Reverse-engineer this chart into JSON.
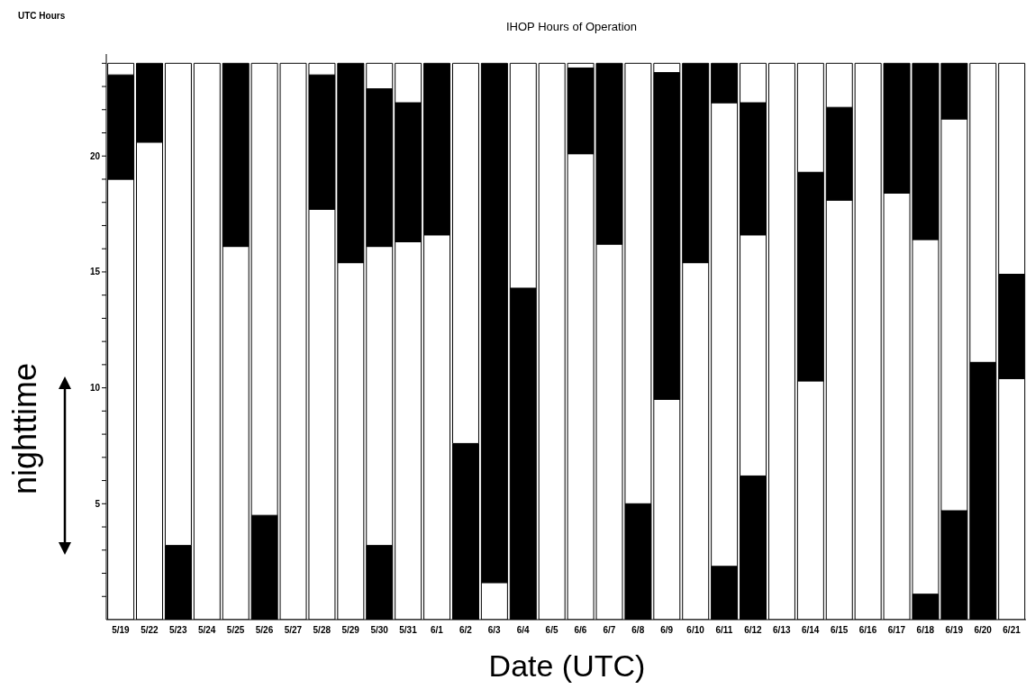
{
  "chart_data": {
    "type": "bar",
    "title": "IHOP Hours of Operation",
    "ylabel": "UTC Hours",
    "xlabel": "Date (UTC)",
    "annotations": [
      "nighttime"
    ],
    "stacked": true,
    "grid": false,
    "legend": false,
    "categories": [
      "5/19",
      "5/22",
      "5/23",
      "5/24",
      "5/25",
      "5/26",
      "5/27",
      "5/28",
      "5/29",
      "5/30",
      "5/31",
      "6/1",
      "6/2",
      "6/3",
      "6/4",
      "6/5",
      "6/6",
      "6/7",
      "6/8",
      "6/9",
      "6/10",
      "6/11",
      "6/12",
      "6/13",
      "6/14",
      "6/15",
      "6/16",
      "6/17",
      "6/18",
      "6/19",
      "6/20",
      "6/21"
    ],
    "series": [
      {
        "color": "#000000",
        "values": [
          0,
          0,
          3.2,
          0,
          0,
          4.5,
          0,
          0,
          0,
          3.2,
          0,
          0,
          7.6,
          0,
          14.3,
          0,
          0,
          0,
          5,
          0,
          0,
          2.3,
          6.2,
          0,
          0,
          0,
          0,
          0,
          1.1,
          4.7,
          11.1,
          0
        ]
      },
      {
        "color": "#ffffff",
        "values": [
          19,
          20.6,
          20.8,
          24,
          16.1,
          19.5,
          24,
          17.7,
          15.4,
          12.9,
          16.3,
          16.6,
          16.4,
          1.6,
          9.7,
          24,
          20.1,
          16.2,
          19,
          9.5,
          15.4,
          20,
          10.4,
          24,
          10.3,
          18.1,
          24,
          18.4,
          15.3,
          16.9,
          12.9,
          10.4
        ]
      },
      {
        "color": "#000000",
        "values": [
          4.5,
          3.4,
          0,
          0,
          7.9,
          0,
          0,
          5.8,
          8.6,
          6.8,
          6,
          7.4,
          0,
          22.4,
          0,
          0,
          3.7,
          7.8,
          0,
          14.1,
          8.6,
          1.7,
          5.7,
          0,
          9,
          4,
          0,
          5.6,
          7.6,
          2.4,
          0,
          4.5
        ]
      },
      {
        "color": "#ffffff",
        "values": [
          0.5,
          0,
          0,
          0,
          0,
          0,
          0,
          0.5,
          0,
          1.1,
          1.7,
          0,
          0,
          0,
          0,
          0,
          0.2,
          0,
          0,
          0.4,
          0,
          0,
          1.7,
          0,
          4.7,
          1.9,
          0,
          0,
          0,
          0,
          0,
          9.1
        ]
      }
    ],
    "ylim": [
      0,
      24.4
    ],
    "yticks": [
      {
        "value": 1,
        "label": null
      },
      {
        "value": 2,
        "label": null
      },
      {
        "value": 3,
        "label": null
      },
      {
        "value": 4,
        "label": null
      },
      5,
      {
        "value": 6,
        "label": null
      },
      {
        "value": 7,
        "label": null
      },
      {
        "value": 8,
        "label": null
      },
      {
        "value": 9,
        "label": null
      },
      10,
      {
        "value": 11,
        "label": null
      },
      {
        "value": 12,
        "label": null
      },
      {
        "value": 13,
        "label": null
      },
      {
        "value": 14,
        "label": null
      },
      15,
      {
        "value": 16,
        "label": null
      },
      {
        "value": 17,
        "label": null
      },
      {
        "value": 18,
        "label": null
      },
      {
        "value": 19,
        "label": null
      },
      20,
      {
        "value": 21,
        "label": null
      },
      {
        "value": 22,
        "label": null
      },
      {
        "value": 23,
        "label": null
      },
      {
        "value": 24,
        "label": null
      }
    ]
  }
}
